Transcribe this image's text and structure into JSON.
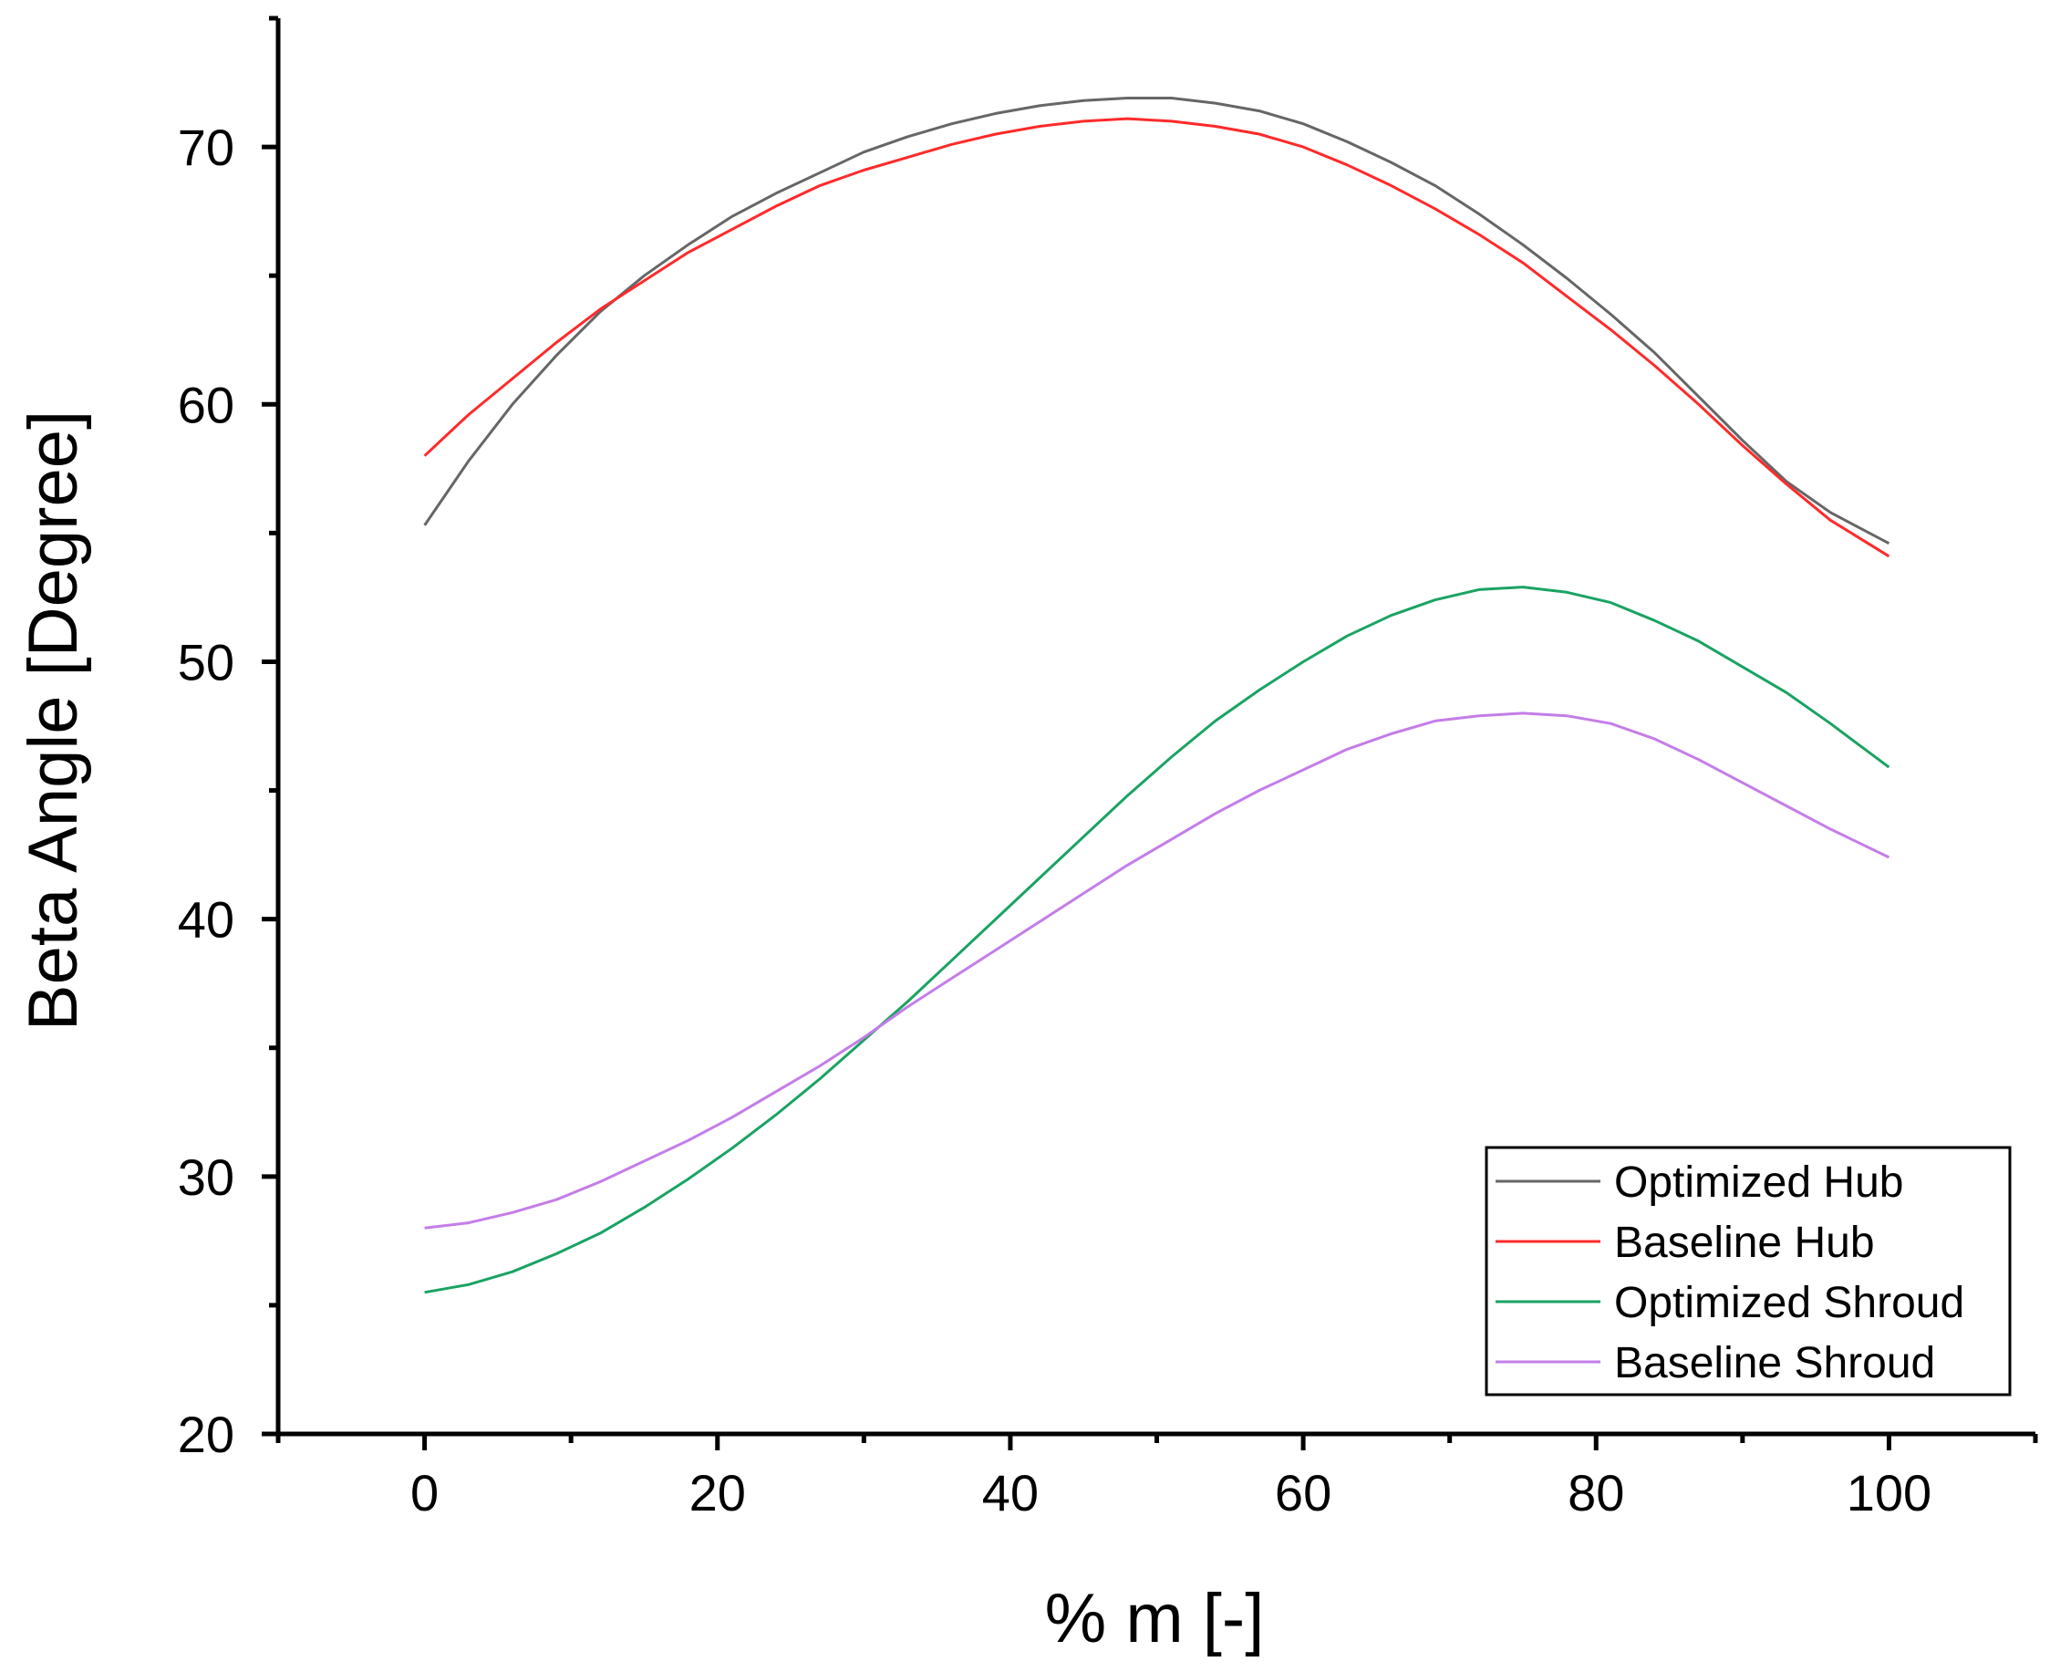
{
  "chart_data": {
    "type": "line",
    "title": "",
    "xlabel": "% m [-]",
    "ylabel": "Beta Angle [Degree]",
    "xlim": [
      -10,
      110
    ],
    "ylim": [
      20,
      75
    ],
    "xticks": [
      0,
      20,
      40,
      60,
      80,
      100
    ],
    "yticks": [
      20,
      30,
      40,
      50,
      60,
      70
    ],
    "x_minor_ticks": [
      -10,
      10,
      30,
      50,
      70,
      90,
      110
    ],
    "y_minor_ticks": [
      25,
      35,
      45,
      55,
      65,
      75
    ],
    "grid": false,
    "legend_position": "bottom-right",
    "series": [
      {
        "name": "Optimized Hub",
        "color": "#666666",
        "x": [
          0,
          3,
          6,
          9,
          12,
          15,
          18,
          21,
          24,
          27,
          30,
          33,
          36,
          39,
          42,
          45,
          48,
          51,
          54,
          57,
          60,
          63,
          66,
          69,
          72,
          75,
          78,
          81,
          84,
          87,
          90,
          93,
          96,
          100
        ],
        "y": [
          55.3,
          57.8,
          60.0,
          61.9,
          63.6,
          65.0,
          66.2,
          67.3,
          68.2,
          69.0,
          69.8,
          70.4,
          70.9,
          71.3,
          71.6,
          71.8,
          71.9,
          71.9,
          71.7,
          71.4,
          70.9,
          70.2,
          69.4,
          68.5,
          67.4,
          66.2,
          64.9,
          63.5,
          62.0,
          60.3,
          58.6,
          57.0,
          55.8,
          54.6
        ]
      },
      {
        "name": "Baseline Hub",
        "color": "#ff2a2a",
        "x": [
          0,
          3,
          6,
          9,
          12,
          15,
          18,
          21,
          24,
          27,
          30,
          33,
          36,
          39,
          42,
          45,
          48,
          51,
          54,
          57,
          60,
          63,
          66,
          69,
          72,
          75,
          78,
          81,
          84,
          87,
          90,
          93,
          96,
          100
        ],
        "y": [
          58.0,
          59.6,
          61.0,
          62.4,
          63.7,
          64.8,
          65.9,
          66.8,
          67.7,
          68.5,
          69.1,
          69.6,
          70.1,
          70.5,
          70.8,
          71.0,
          71.1,
          71.0,
          70.8,
          70.5,
          70.0,
          69.3,
          68.5,
          67.6,
          66.6,
          65.5,
          64.2,
          62.9,
          61.5,
          60.0,
          58.4,
          56.9,
          55.5,
          54.1
        ]
      },
      {
        "name": "Optimized Shroud",
        "color": "#1aa362",
        "x": [
          0,
          3,
          6,
          9,
          12,
          15,
          18,
          21,
          24,
          27,
          30,
          33,
          36,
          39,
          42,
          45,
          48,
          51,
          54,
          57,
          60,
          63,
          66,
          69,
          72,
          75,
          78,
          81,
          84,
          87,
          90,
          93,
          96,
          100
        ],
        "y": [
          25.5,
          25.8,
          26.3,
          27.0,
          27.8,
          28.8,
          29.9,
          31.1,
          32.4,
          33.8,
          35.3,
          36.8,
          38.4,
          40.0,
          41.6,
          43.2,
          44.8,
          46.3,
          47.7,
          48.9,
          50.0,
          51.0,
          51.8,
          52.4,
          52.8,
          52.9,
          52.7,
          52.3,
          51.6,
          50.8,
          49.8,
          48.8,
          47.6,
          45.9
        ]
      },
      {
        "name": "Baseline Shroud",
        "color": "#c47de8",
        "x": [
          0,
          3,
          6,
          9,
          12,
          15,
          18,
          21,
          24,
          27,
          30,
          33,
          36,
          39,
          42,
          45,
          48,
          51,
          54,
          57,
          60,
          63,
          66,
          69,
          72,
          75,
          78,
          81,
          84,
          87,
          90,
          93,
          96,
          100
        ],
        "y": [
          28.0,
          28.2,
          28.6,
          29.1,
          29.8,
          30.6,
          31.4,
          32.3,
          33.3,
          34.3,
          35.4,
          36.6,
          37.7,
          38.8,
          39.9,
          41.0,
          42.1,
          43.1,
          44.1,
          45.0,
          45.8,
          46.6,
          47.2,
          47.7,
          47.9,
          48.0,
          47.9,
          47.6,
          47.0,
          46.2,
          45.3,
          44.4,
          43.5,
          42.4
        ]
      }
    ]
  }
}
